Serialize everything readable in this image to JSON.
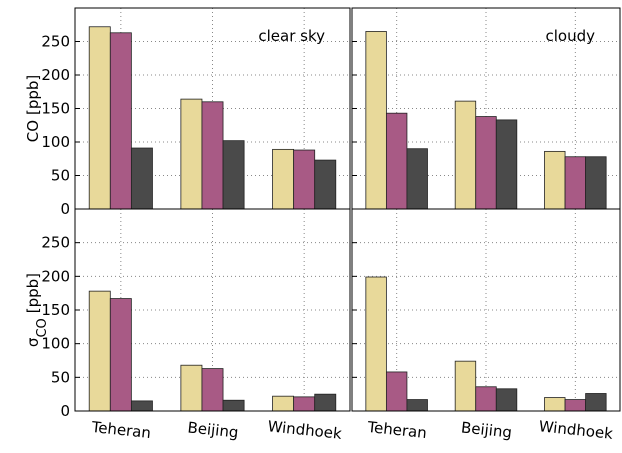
{
  "chart_data": [
    {
      "type": "bar",
      "annotation": "clear sky",
      "ylabel": {
        "symbol": "CO",
        "subscript": null,
        "unit": "[ppb]"
      },
      "categories": [
        null,
        null,
        null
      ],
      "series": [
        {
          "color": "#e8d99a",
          "values": [
            272,
            164,
            89
          ]
        },
        {
          "color": "#a85a85",
          "values": [
            263,
            160,
            88
          ]
        },
        {
          "color": "#4a4a4a",
          "values": [
            91,
            102,
            73
          ]
        }
      ],
      "ylim": [
        0,
        300
      ],
      "yticks": [
        0,
        50,
        100,
        150,
        200,
        250
      ],
      "show_ytick_labels": true,
      "grid": true
    },
    {
      "type": "bar",
      "annotation": "cloudy",
      "categories": [
        null,
        null,
        null
      ],
      "series": [
        {
          "color": "#e8d99a",
          "values": [
            265,
            161,
            86
          ]
        },
        {
          "color": "#a85a85",
          "values": [
            143,
            138,
            78
          ]
        },
        {
          "color": "#4a4a4a",
          "values": [
            90,
            133,
            78
          ]
        }
      ],
      "ylim": [
        0,
        300
      ],
      "yticks": [
        0,
        50,
        100,
        150,
        200,
        250
      ],
      "show_ytick_labels": false,
      "grid": true
    },
    {
      "type": "bar",
      "ylabel": {
        "symbol": "σ",
        "subscript": "CO",
        "unit": "[ppb]"
      },
      "categories": [
        "Teheran",
        "Beijing",
        "Windhoek"
      ],
      "series": [
        {
          "color": "#e8d99a",
          "values": [
            178,
            68,
            22
          ]
        },
        {
          "color": "#a85a85",
          "values": [
            167,
            63,
            21
          ]
        },
        {
          "color": "#4a4a4a",
          "values": [
            15,
            16,
            25
          ]
        }
      ],
      "ylim": [
        0,
        300
      ],
      "yticks": [
        0,
        50,
        100,
        150,
        200,
        250
      ],
      "show_ytick_labels": true,
      "grid": true
    },
    {
      "type": "bar",
      "categories": [
        "Teheran",
        "Beijing",
        "Windhoek"
      ],
      "series": [
        {
          "color": "#e8d99a",
          "values": [
            199,
            74,
            20
          ]
        },
        {
          "color": "#a85a85",
          "values": [
            58,
            36,
            17
          ]
        },
        {
          "color": "#4a4a4a",
          "values": [
            17,
            33,
            26
          ]
        }
      ],
      "ylim": [
        0,
        300
      ],
      "yticks": [
        0,
        50,
        100,
        150,
        200,
        250
      ],
      "show_ytick_labels": false,
      "grid": true
    }
  ]
}
